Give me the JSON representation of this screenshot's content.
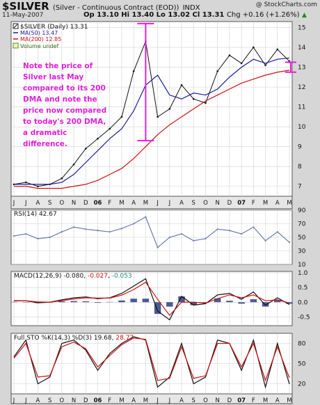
{
  "header": {
    "symbol": "$SILVER",
    "description": "(Silver - Continuous Contract (EOD))",
    "exchange": "INDX",
    "copyright": "@ StockCharts.com",
    "date": "11-May-2007",
    "open": "Op 13.10",
    "high": "Hi 13.40",
    "low": "Lo 13.02",
    "close": "Cl 13.31",
    "change": "Chg +0.16 (+1.26%)",
    "change_arrow": "▲"
  },
  "legend": {
    "price": "$SILVER (Daily) 13.31",
    "ma50": "MA(50) 13.47",
    "ma200": "MA(200) 12.85",
    "volume": "Volume undef"
  },
  "annotation": "Note the price of Silver last May compared to its 200 DMA and note the price now compared to today's 200 DMA, a dramatic difference.",
  "rsi_label": "RSI(14) 42.67",
  "macd_label": {
    "prefix": "MACD(12,26,9) -0.080, ",
    "signal": "-0.027",
    "sep": ", ",
    "hist": "-0.053"
  },
  "sto_label": {
    "prefix": "Full STO %K(14,3) %D(3) 19.68, ",
    "d": "28.77"
  },
  "colors": {
    "price": "#111111",
    "ma50": "#1a1aa0",
    "ma200": "#d01010",
    "annotation": "#e020d8",
    "rsi_line": "#6a7bb0",
    "macd_hist": "#4a5a90",
    "grid": "#c8c8c8"
  },
  "chart_data": [
    {
      "type": "line",
      "title": "$SILVER (Daily) 13.31",
      "x": [
        "J",
        "J",
        "A",
        "S",
        "O",
        "N",
        "D",
        "06",
        "F",
        "M",
        "A",
        "M",
        "J",
        "J",
        "A",
        "S",
        "O",
        "N",
        "D",
        "07",
        "F",
        "M",
        "A",
        "M"
      ],
      "ylim": [
        6.5,
        15.3
      ],
      "yticks": [
        7,
        8,
        9,
        10,
        11,
        12,
        13,
        14,
        15
      ],
      "series": [
        {
          "name": "$SILVER (Daily)",
          "values": [
            7.1,
            7.2,
            7.0,
            7.1,
            7.4,
            8.1,
            8.9,
            9.4,
            9.9,
            10.5,
            12.8,
            14.3,
            10.5,
            10.9,
            12.1,
            11.4,
            11.2,
            12.8,
            13.6,
            13.2,
            14.0,
            13.1,
            13.9,
            13.3
          ]
        },
        {
          "name": "MA(50)",
          "values": [
            7.1,
            7.1,
            7.1,
            7.1,
            7.2,
            7.6,
            8.2,
            8.8,
            9.4,
            9.9,
            10.8,
            12.1,
            12.6,
            11.6,
            11.4,
            11.7,
            11.6,
            11.9,
            12.5,
            13.0,
            13.4,
            13.2,
            13.4,
            13.47
          ]
        },
        {
          "name": "MA(200)",
          "values": [
            7.0,
            7.0,
            6.9,
            6.9,
            6.9,
            7.0,
            7.1,
            7.3,
            7.6,
            7.9,
            8.4,
            9.0,
            9.6,
            10.1,
            10.5,
            10.9,
            11.3,
            11.6,
            11.9,
            12.2,
            12.4,
            12.6,
            12.75,
            12.85
          ]
        }
      ],
      "annotations": [
        "Note the price of Silver last May compared to its 200 DMA and note the price now compared to today's 200 DMA, a dramatic difference."
      ]
    },
    {
      "type": "line",
      "title": "RSI(14) 42.67",
      "x": [
        "J",
        "J",
        "A",
        "S",
        "O",
        "N",
        "D",
        "06",
        "F",
        "M",
        "A",
        "M",
        "J",
        "J",
        "A",
        "S",
        "O",
        "N",
        "D",
        "07",
        "F",
        "M",
        "A",
        "M"
      ],
      "ylim": [
        10,
        90
      ],
      "yticks": [
        10,
        30,
        50,
        70,
        90
      ],
      "series": [
        {
          "name": "RSI(14)",
          "values": [
            52,
            55,
            48,
            50,
            58,
            65,
            62,
            60,
            58,
            63,
            70,
            80,
            35,
            50,
            55,
            45,
            48,
            62,
            60,
            55,
            65,
            45,
            58,
            42.67
          ]
        }
      ]
    },
    {
      "type": "line",
      "title": "MACD(12,26,9) -0.080, -0.027, -0.053",
      "x": [
        "J",
        "J",
        "A",
        "S",
        "O",
        "N",
        "D",
        "06",
        "F",
        "M",
        "A",
        "M",
        "J",
        "J",
        "A",
        "S",
        "O",
        "N",
        "D",
        "07",
        "F",
        "M",
        "A",
        "M"
      ],
      "ylim": [
        -0.8,
        1.05
      ],
      "yticks": [
        -0.5,
        0.0,
        0.5,
        1.0
      ],
      "series": [
        {
          "name": "MACD",
          "values": [
            0.05,
            0.05,
            -0.02,
            0.0,
            0.08,
            0.15,
            0.18,
            0.12,
            0.15,
            0.3,
            0.55,
            0.8,
            -0.3,
            -0.6,
            0.2,
            -0.1,
            -0.05,
            0.25,
            0.3,
            0.1,
            0.35,
            -0.1,
            0.15,
            -0.08
          ]
        },
        {
          "name": "Signal",
          "values": [
            0.04,
            0.05,
            0.01,
            0.0,
            0.05,
            0.11,
            0.15,
            0.14,
            0.14,
            0.24,
            0.43,
            0.68,
            0.1,
            -0.45,
            0.0,
            0.0,
            -0.03,
            0.12,
            0.25,
            0.15,
            0.25,
            0.05,
            0.08,
            -0.027
          ]
        },
        {
          "name": "Histogram",
          "values": [
            0.01,
            0.0,
            -0.03,
            0.0,
            0.03,
            0.04,
            0.03,
            -0.02,
            0.01,
            0.06,
            0.12,
            0.12,
            -0.4,
            -0.15,
            0.2,
            -0.1,
            -0.02,
            0.13,
            0.05,
            -0.05,
            0.1,
            -0.15,
            0.07,
            -0.053
          ]
        }
      ]
    },
    {
      "type": "line",
      "title": "Full STO %K(14,3) %D(3) 19.68, 28.77",
      "x": [
        "J",
        "J",
        "A",
        "S",
        "O",
        "N",
        "D",
        "06",
        "F",
        "M",
        "A",
        "M",
        "J",
        "J",
        "A",
        "S",
        "O",
        "N",
        "D",
        "07",
        "F",
        "M",
        "A",
        "M"
      ],
      "ylim": [
        5,
        95
      ],
      "yticks": [
        20,
        50,
        80
      ],
      "series": [
        {
          "name": "%K",
          "values": [
            60,
            85,
            20,
            30,
            80,
            85,
            70,
            40,
            65,
            80,
            90,
            85,
            15,
            30,
            80,
            20,
            30,
            85,
            80,
            40,
            85,
            15,
            80,
            19.68
          ]
        },
        {
          "name": "%D",
          "values": [
            58,
            80,
            30,
            32,
            75,
            82,
            72,
            45,
            62,
            78,
            88,
            86,
            25,
            28,
            75,
            28,
            32,
            80,
            80,
            45,
            80,
            25,
            75,
            28.77
          ]
        }
      ]
    }
  ]
}
